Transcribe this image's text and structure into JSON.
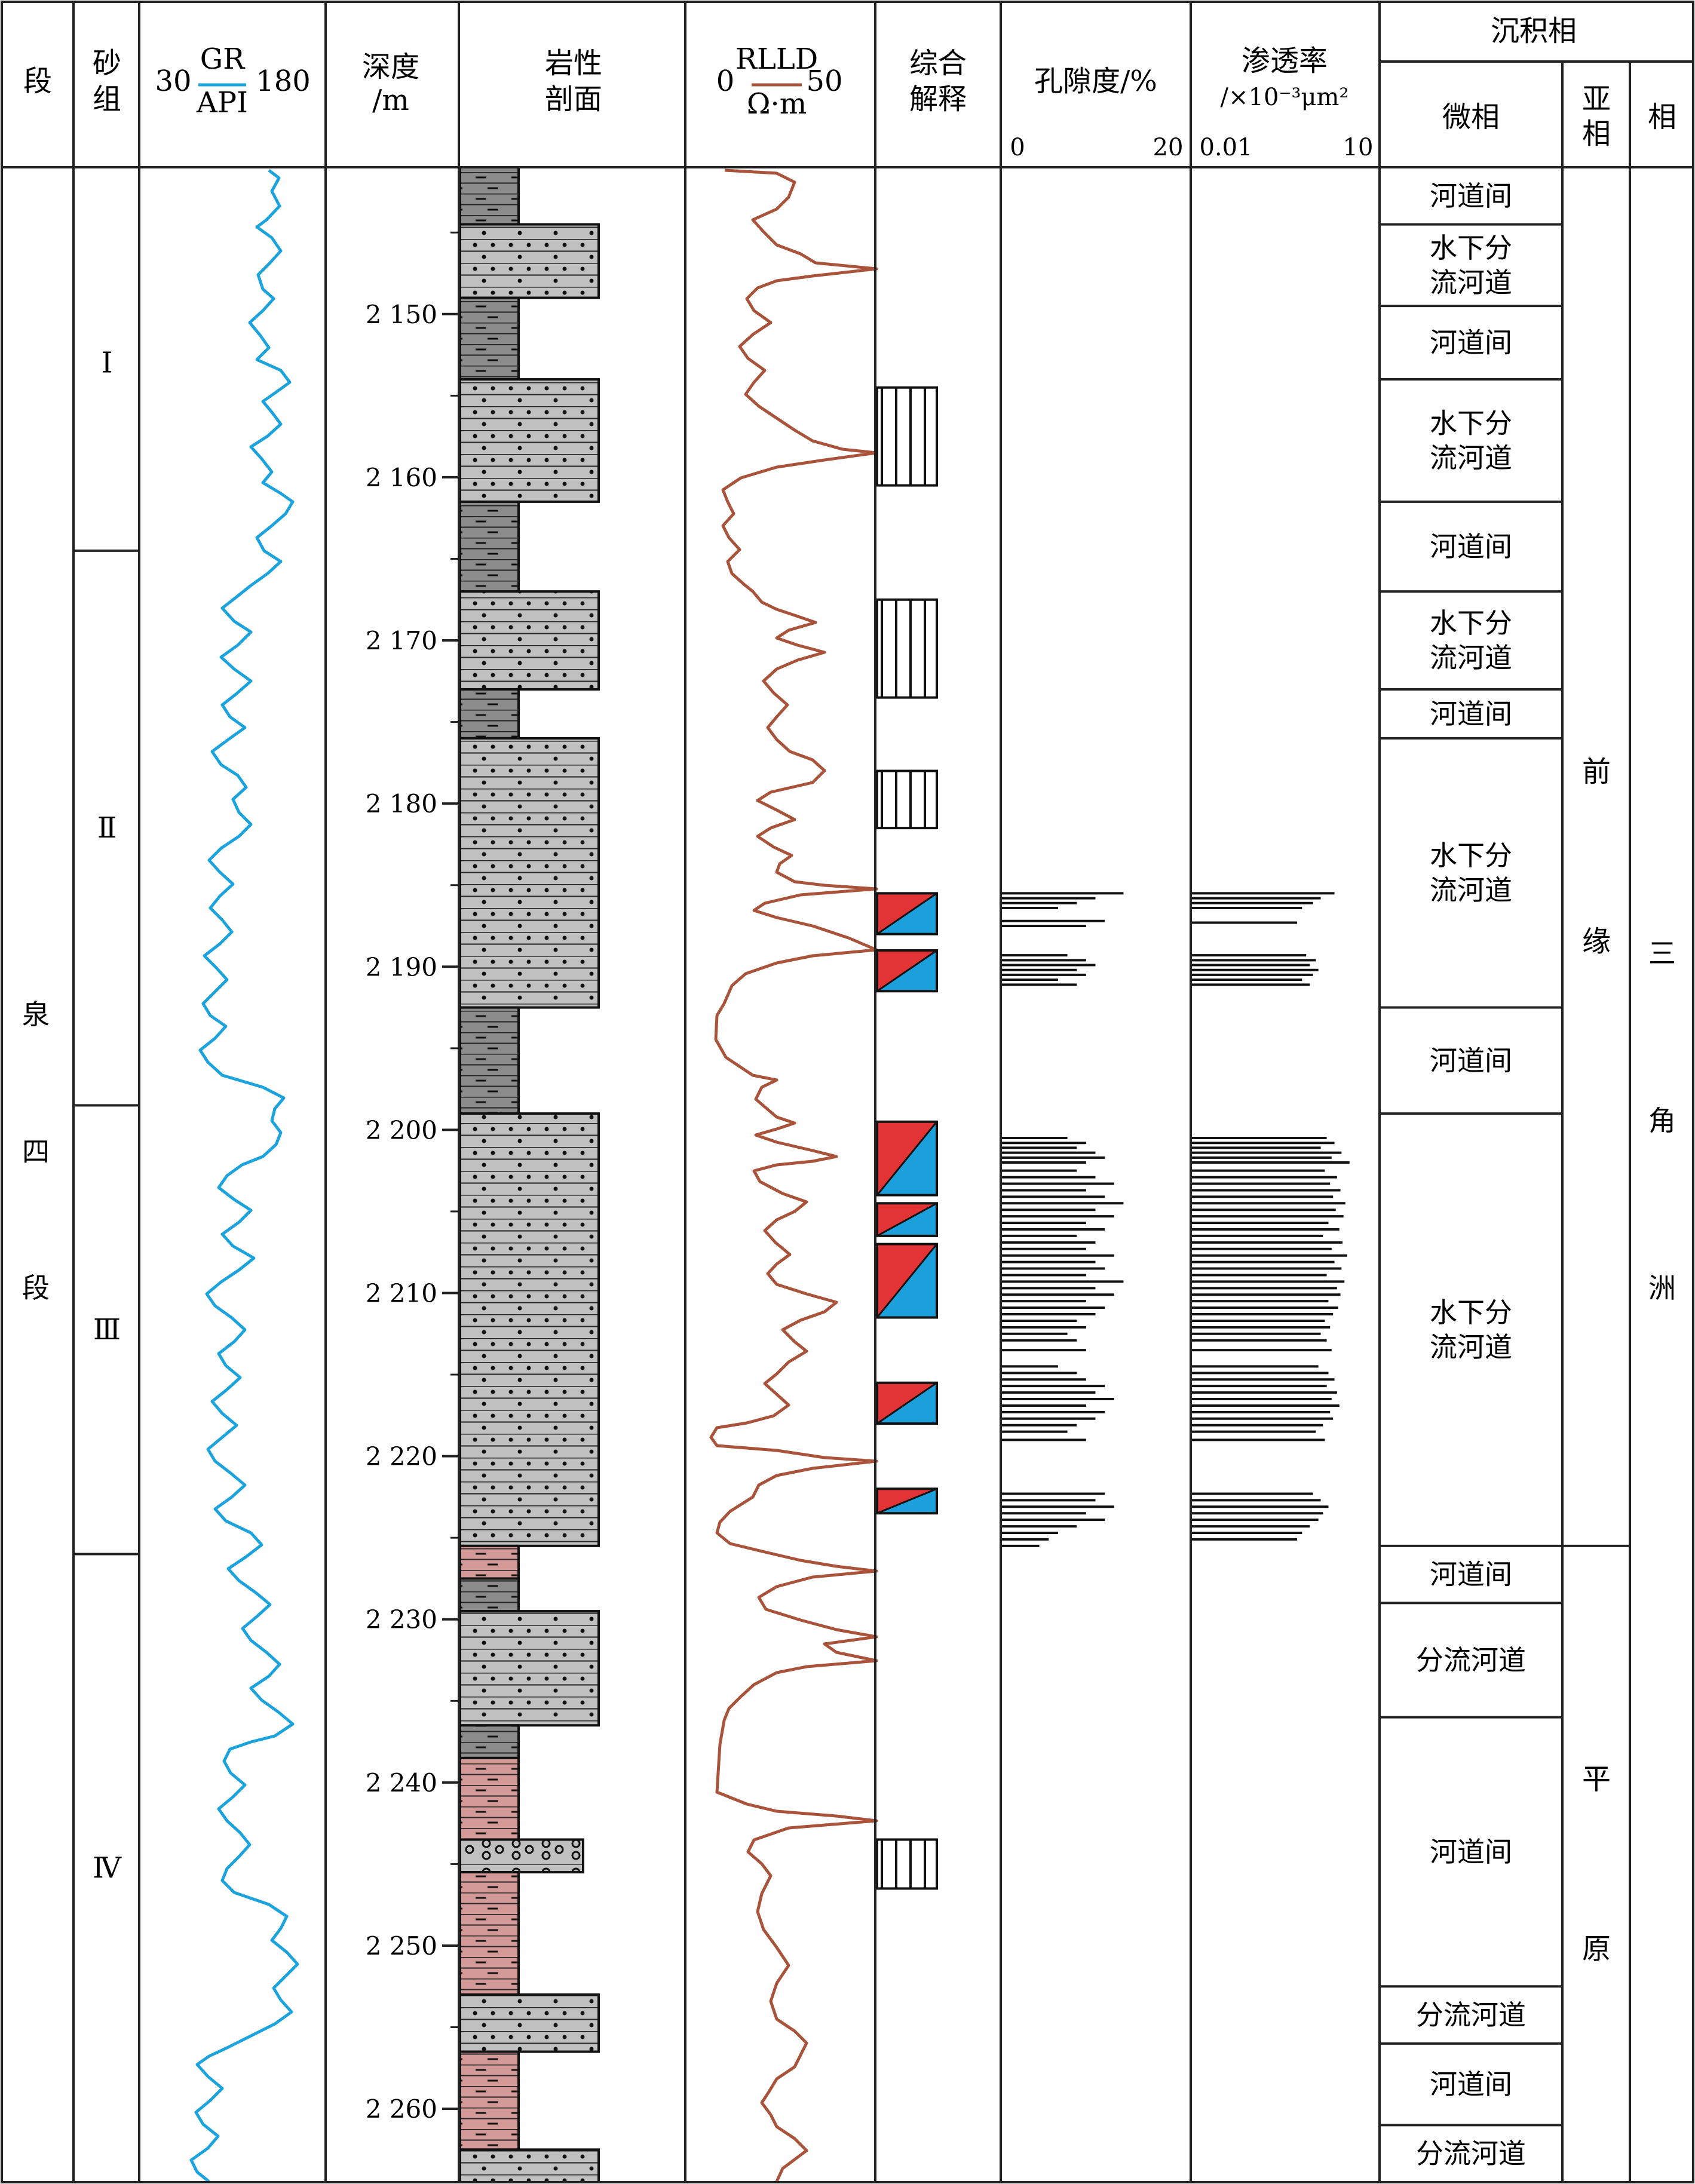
{
  "header": {
    "col_member": "段",
    "col_sandgroup": [
      "砂",
      "组"
    ],
    "gr": {
      "top": "GR",
      "bottom": "API",
      "min": "30",
      "max": "180",
      "color": "#1aa3dc"
    },
    "depth": [
      "深度",
      "/m"
    ],
    "lithology": [
      "岩性",
      "剖面"
    ],
    "rlld": {
      "top": "RLLD",
      "bottom": "Ω·m",
      "min": "0",
      "max": "50",
      "color": "#a9533a"
    },
    "interpretation": [
      "综合",
      "解释"
    ],
    "porosity": {
      "title": "孔隙度/%",
      "min": "0",
      "max": "20"
    },
    "permeability": {
      "title": "渗透率",
      "unit": "/×10⁻³μm²",
      "min": "0.01",
      "max": "10"
    },
    "facies_group": "沉积相",
    "microfacies": "微相",
    "subfacies": [
      "亚",
      "相"
    ],
    "facies": "相"
  },
  "member": {
    "chars": [
      "泉",
      "四",
      "段"
    ]
  },
  "sand_groups": [
    {
      "label": "Ⅰ",
      "top": 2141.5,
      "bottom": 2164.5
    },
    {
      "label": "Ⅱ",
      "top": 2164.5,
      "bottom": 2198.5
    },
    {
      "label": "Ⅲ",
      "top": 2198.5,
      "bottom": 2226.0
    },
    {
      "label": "Ⅳ",
      "top": 2226.0,
      "bottom": 2264.5
    }
  ],
  "depth_ticks": [
    "2 150",
    "2 160",
    "2 170",
    "2 180",
    "2 190",
    "2 200",
    "2 210",
    "2 220",
    "2 230",
    "2 240",
    "2 250",
    "2 260"
  ],
  "depth_values": [
    2150,
    2160,
    2170,
    2180,
    2190,
    2200,
    2210,
    2220,
    2230,
    2240,
    2250,
    2260
  ],
  "depth_range": [
    2141.0,
    2264.5
  ],
  "lithology_units": [
    {
      "top": 2141.0,
      "bottom": 2144.5,
      "type": "mudstone"
    },
    {
      "top": 2144.5,
      "bottom": 2149.0,
      "type": "sandstone"
    },
    {
      "top": 2149.0,
      "bottom": 2154.0,
      "type": "mudstone"
    },
    {
      "top": 2154.0,
      "bottom": 2161.5,
      "type": "sandstone"
    },
    {
      "top": 2161.5,
      "bottom": 2167.0,
      "type": "mudstone"
    },
    {
      "top": 2167.0,
      "bottom": 2173.0,
      "type": "sandstone"
    },
    {
      "top": 2173.0,
      "bottom": 2176.0,
      "type": "mudstone"
    },
    {
      "top": 2176.0,
      "bottom": 2192.5,
      "type": "sandstone"
    },
    {
      "top": 2192.5,
      "bottom": 2199.0,
      "type": "mudstone"
    },
    {
      "top": 2199.0,
      "bottom": 2225.5,
      "type": "sandstone"
    },
    {
      "top": 2225.5,
      "bottom": 2227.5,
      "type": "red-mudstone"
    },
    {
      "top": 2227.5,
      "bottom": 2229.5,
      "type": "mudstone"
    },
    {
      "top": 2229.5,
      "bottom": 2236.5,
      "type": "sandstone"
    },
    {
      "top": 2236.5,
      "bottom": 2238.5,
      "type": "mudstone"
    },
    {
      "top": 2238.5,
      "bottom": 2243.5,
      "type": "red-mudstone"
    },
    {
      "top": 2243.5,
      "bottom": 2245.5,
      "type": "conglomerate"
    },
    {
      "top": 2245.5,
      "bottom": 2253.0,
      "type": "red-mudstone"
    },
    {
      "top": 2253.0,
      "bottom": 2256.5,
      "type": "sandstone"
    },
    {
      "top": 2256.5,
      "bottom": 2262.5,
      "type": "red-mudstone"
    },
    {
      "top": 2262.5,
      "bottom": 2264.5,
      "type": "sandstone"
    }
  ],
  "interpretation": [
    {
      "top": 2154.5,
      "bottom": 2160.5,
      "type": "dry"
    },
    {
      "top": 2167.5,
      "bottom": 2173.5,
      "type": "dry"
    },
    {
      "top": 2178.0,
      "bottom": 2181.5,
      "type": "dry"
    },
    {
      "top": 2185.5,
      "bottom": 2188.0,
      "type": "oil-water"
    },
    {
      "top": 2189.0,
      "bottom": 2191.5,
      "type": "oil-water"
    },
    {
      "top": 2199.5,
      "bottom": 2204.0,
      "type": "oil-water"
    },
    {
      "top": 2204.5,
      "bottom": 2206.5,
      "type": "oil-water"
    },
    {
      "top": 2207.0,
      "bottom": 2211.5,
      "type": "oil-water"
    },
    {
      "top": 2215.5,
      "bottom": 2218.0,
      "type": "oil-water"
    },
    {
      "top": 2222.0,
      "bottom": 2223.5,
      "type": "oil-water"
    },
    {
      "top": 2243.5,
      "bottom": 2246.5,
      "type": "dry"
    }
  ],
  "microfacies": [
    {
      "label": [
        "河道间"
      ],
      "top": 2141.0,
      "bottom": 2144.5
    },
    {
      "label": [
        "水下分",
        "流河道"
      ],
      "top": 2144.5,
      "bottom": 2149.5
    },
    {
      "label": [
        "河道间"
      ],
      "top": 2149.5,
      "bottom": 2154.0
    },
    {
      "label": [
        "水下分",
        "流河道"
      ],
      "top": 2154.0,
      "bottom": 2161.5
    },
    {
      "label": [
        "河道间"
      ],
      "top": 2161.5,
      "bottom": 2167.0
    },
    {
      "label": [
        "水下分",
        "流河道"
      ],
      "top": 2167.0,
      "bottom": 2173.0
    },
    {
      "label": [
        "河道间"
      ],
      "top": 2173.0,
      "bottom": 2176.0
    },
    {
      "label": [
        "水下分",
        "流河道"
      ],
      "top": 2176.0,
      "bottom": 2192.5
    },
    {
      "label": [
        "河道间"
      ],
      "top": 2192.5,
      "bottom": 2199.0
    },
    {
      "label": [
        "水下分",
        "流河道"
      ],
      "top": 2199.0,
      "bottom": 2225.5
    },
    {
      "label": [
        "河道间"
      ],
      "top": 2225.5,
      "bottom": 2229.0
    },
    {
      "label": [
        "分流河道"
      ],
      "top": 2229.0,
      "bottom": 2236.0
    },
    {
      "label": [
        "河道间"
      ],
      "top": 2236.0,
      "bottom": 2252.5
    },
    {
      "label": [
        "分流河道"
      ],
      "top": 2252.5,
      "bottom": 2256.0
    },
    {
      "label": [
        "河道间"
      ],
      "top": 2256.0,
      "bottom": 2261.0
    },
    {
      "label": [
        "分流河道"
      ],
      "top": 2261.0,
      "bottom": 2264.5
    }
  ],
  "subfacies": [
    {
      "chars": [
        "前",
        "缘"
      ],
      "top": 2141.0,
      "bottom": 2225.5
    },
    {
      "chars": [
        "平",
        "原"
      ],
      "top": 2225.5,
      "bottom": 2264.5
    }
  ],
  "facies": {
    "chars": [
      "三",
      "角",
      "洲"
    ]
  },
  "porosity_bars": [
    [
      2185.5,
      13
    ],
    [
      2185.8,
      10
    ],
    [
      2186.1,
      8
    ],
    [
      2186.4,
      6
    ],
    [
      2187.2,
      11
    ],
    [
      2187.5,
      9
    ],
    [
      2189.3,
      7
    ],
    [
      2189.6,
      9
    ],
    [
      2189.9,
      10
    ],
    [
      2190.2,
      8
    ],
    [
      2190.5,
      9
    ],
    [
      2190.8,
      6
    ],
    [
      2191.1,
      8
    ],
    [
      2200.5,
      7
    ],
    [
      2200.8,
      9
    ],
    [
      2201.1,
      8
    ],
    [
      2201.4,
      10
    ],
    [
      2201.7,
      11
    ],
    [
      2202.0,
      9
    ],
    [
      2202.5,
      8
    ],
    [
      2202.9,
      10
    ],
    [
      2203.3,
      12
    ],
    [
      2203.7,
      9
    ],
    [
      2204.1,
      11
    ],
    [
      2204.5,
      13
    ],
    [
      2204.9,
      10
    ],
    [
      2205.3,
      12
    ],
    [
      2205.7,
      9
    ],
    [
      2206.1,
      11
    ],
    [
      2206.5,
      8
    ],
    [
      2206.9,
      10
    ],
    [
      2207.3,
      9
    ],
    [
      2207.7,
      12
    ],
    [
      2208.1,
      10
    ],
    [
      2208.5,
      11
    ],
    [
      2208.9,
      9
    ],
    [
      2209.3,
      13
    ],
    [
      2209.7,
      10
    ],
    [
      2210.1,
      12
    ],
    [
      2210.5,
      9
    ],
    [
      2210.9,
      11
    ],
    [
      2211.3,
      10
    ],
    [
      2211.7,
      8
    ],
    [
      2212.1,
      9
    ],
    [
      2212.5,
      7
    ],
    [
      2212.9,
      8
    ],
    [
      2213.5,
      9
    ],
    [
      2214.5,
      6
    ],
    [
      2214.9,
      8
    ],
    [
      2215.3,
      9
    ],
    [
      2215.7,
      11
    ],
    [
      2216.1,
      10
    ],
    [
      2216.5,
      12
    ],
    [
      2216.9,
      9
    ],
    [
      2217.3,
      11
    ],
    [
      2217.7,
      10
    ],
    [
      2218.1,
      8
    ],
    [
      2218.5,
      7
    ],
    [
      2219.0,
      9
    ],
    [
      2222.3,
      11
    ],
    [
      2222.7,
      10
    ],
    [
      2223.1,
      12
    ],
    [
      2223.5,
      9
    ],
    [
      2223.9,
      11
    ],
    [
      2224.3,
      8
    ],
    [
      2224.7,
      6
    ],
    [
      2225.1,
      5
    ],
    [
      2225.5,
      4
    ]
  ],
  "permeability_bars": [
    [
      2185.5,
      2.0
    ],
    [
      2185.8,
      1.2
    ],
    [
      2186.1,
      0.9
    ],
    [
      2186.4,
      0.6
    ],
    [
      2187.3,
      0.5
    ],
    [
      2189.3,
      0.7
    ],
    [
      2189.6,
      1.0
    ],
    [
      2189.9,
      0.8
    ],
    [
      2190.2,
      1.1
    ],
    [
      2190.5,
      0.9
    ],
    [
      2190.8,
      0.6
    ],
    [
      2191.1,
      0.8
    ],
    [
      2200.5,
      1.5
    ],
    [
      2200.8,
      2.0
    ],
    [
      2201.1,
      1.2
    ],
    [
      2201.4,
      2.6
    ],
    [
      2201.7,
      1.8
    ],
    [
      2202.0,
      3.5
    ],
    [
      2202.5,
      1.4
    ],
    [
      2202.9,
      2.2
    ],
    [
      2203.3,
      1.7
    ],
    [
      2203.7,
      2.5
    ],
    [
      2204.1,
      1.9
    ],
    [
      2204.5,
      3.0
    ],
    [
      2204.9,
      2.1
    ],
    [
      2205.3,
      2.8
    ],
    [
      2205.7,
      1.6
    ],
    [
      2206.1,
      2.4
    ],
    [
      2206.5,
      1.3
    ],
    [
      2206.9,
      2.7
    ],
    [
      2207.3,
      1.8
    ],
    [
      2207.7,
      3.2
    ],
    [
      2208.1,
      2.0
    ],
    [
      2208.5,
      2.6
    ],
    [
      2208.9,
      1.5
    ],
    [
      2209.3,
      2.9
    ],
    [
      2209.7,
      2.2
    ],
    [
      2210.1,
      2.5
    ],
    [
      2210.5,
      1.6
    ],
    [
      2210.9,
      2.3
    ],
    [
      2211.3,
      1.9
    ],
    [
      2211.7,
      1.4
    ],
    [
      2212.1,
      1.7
    ],
    [
      2212.5,
      1.2
    ],
    [
      2212.9,
      1.5
    ],
    [
      2213.5,
      1.8
    ],
    [
      2214.5,
      1.1
    ],
    [
      2214.9,
      1.6
    ],
    [
      2215.3,
      2.0
    ],
    [
      2215.7,
      1.5
    ],
    [
      2216.1,
      2.2
    ],
    [
      2216.5,
      1.8
    ],
    [
      2216.9,
      2.4
    ],
    [
      2217.3,
      1.7
    ],
    [
      2217.7,
      1.9
    ],
    [
      2218.1,
      1.3
    ],
    [
      2218.5,
      1.0
    ],
    [
      2219.0,
      1.4
    ],
    [
      2222.3,
      0.9
    ],
    [
      2222.7,
      1.2
    ],
    [
      2223.1,
      1.6
    ],
    [
      2223.5,
      1.3
    ],
    [
      2223.9,
      1.1
    ],
    [
      2224.3,
      0.8
    ],
    [
      2224.7,
      0.6
    ],
    [
      2225.1,
      0.5
    ]
  ]
}
